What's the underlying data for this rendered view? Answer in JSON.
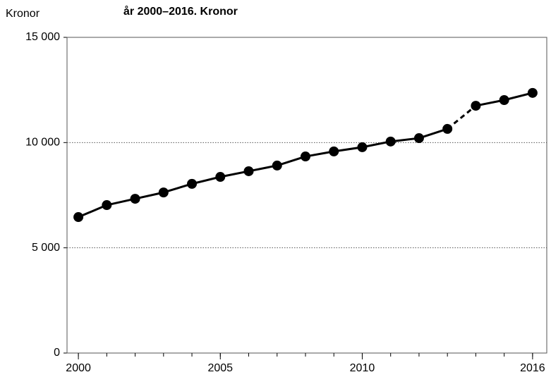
{
  "chart_data": {
    "type": "line",
    "title": "år 2000–2016. Kronor",
    "y_label": "Kronor",
    "x": [
      2000,
      2001,
      2002,
      2003,
      2004,
      2005,
      2006,
      2007,
      2008,
      2009,
      2010,
      2011,
      2012,
      2013,
      2014,
      2015,
      2016
    ],
    "series": [
      {
        "color": "#000000",
        "values": [
          6460,
          7030,
          7330,
          7630,
          8040,
          8370,
          8640,
          8910,
          9340,
          9580,
          9780,
          10050,
          10210,
          10650,
          11750,
          12020,
          12360
        ]
      }
    ],
    "dashed_between": [
      2013,
      2014
    ],
    "xlim": [
      1999.6,
      2016.5
    ],
    "xticks": [
      2000,
      2005,
      2010,
      2016
    ],
    "ylim": [
      0,
      15000
    ],
    "yticks": [
      {
        "value": 0,
        "label": "0"
      },
      {
        "value": 5000,
        "label": "5 000"
      },
      {
        "value": 10000,
        "label": "10 000"
      },
      {
        "value": 15000,
        "label": "15 000"
      }
    ],
    "grid": true
  }
}
